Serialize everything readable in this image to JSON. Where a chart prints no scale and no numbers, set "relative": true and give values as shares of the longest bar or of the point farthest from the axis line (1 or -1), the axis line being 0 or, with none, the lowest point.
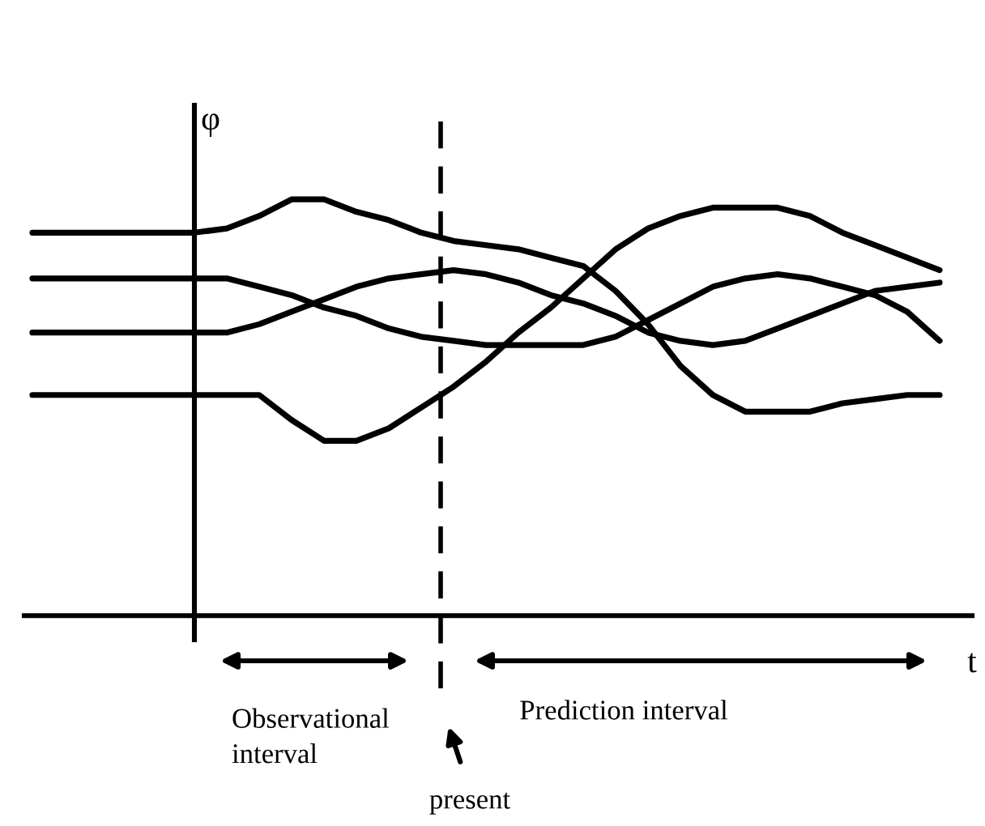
{
  "chart_data": {
    "type": "line",
    "relative": true,
    "xlabel": "t",
    "ylabel": "φ",
    "categories": [
      null,
      null,
      null,
      null,
      null,
      null,
      null,
      null,
      null,
      null,
      null,
      null,
      null,
      null,
      null,
      null,
      null,
      null,
      null,
      null,
      null,
      null,
      null,
      null,
      null,
      null,
      null,
      null,
      null
    ],
    "series": [
      {
        "color": "#000000",
        "values": [
          0.92,
          0.92,
          0.92,
          0.92,
          0.92,
          0.92,
          0.93,
          0.96,
          1.0,
          1.0,
          0.97,
          0.95,
          0.92,
          0.9,
          0.89,
          0.88,
          0.86,
          0.84,
          0.78,
          0.7,
          0.6,
          0.53,
          0.49,
          0.49,
          0.49,
          0.51,
          0.52,
          0.53,
          0.53
        ]
      },
      {
        "color": "#000000",
        "values": [
          0.81,
          0.81,
          0.81,
          0.81,
          0.81,
          0.81,
          0.81,
          0.79,
          0.77,
          0.74,
          0.72,
          0.69,
          0.67,
          0.66,
          0.65,
          0.65,
          0.65,
          0.65,
          0.67,
          0.71,
          0.75,
          0.79,
          0.81,
          0.82,
          0.81,
          0.79,
          0.77,
          0.73,
          0.66
        ]
      },
      {
        "color": "#000000",
        "values": [
          0.68,
          0.68,
          0.68,
          0.68,
          0.68,
          0.68,
          0.68,
          0.7,
          0.73,
          0.76,
          0.79,
          0.81,
          0.82,
          0.83,
          0.82,
          0.8,
          0.77,
          0.75,
          0.72,
          0.68,
          0.66,
          0.65,
          0.66,
          0.69,
          0.72,
          0.75,
          0.78,
          0.79,
          0.8
        ]
      },
      {
        "color": "#000000",
        "values": [
          0.53,
          0.53,
          0.53,
          0.53,
          0.53,
          0.53,
          0.53,
          0.53,
          0.47,
          0.42,
          0.42,
          0.45,
          0.5,
          0.55,
          0.61,
          0.68,
          0.74,
          0.81,
          0.88,
          0.93,
          0.96,
          0.98,
          0.98,
          0.98,
          0.96,
          0.92,
          0.89,
          0.86,
          0.83
        ]
      }
    ],
    "annotations": [
      "Observational\ninterval",
      "Prediction interval",
      "present"
    ],
    "line_style": "solid",
    "marker": "none",
    "legend": false
  }
}
